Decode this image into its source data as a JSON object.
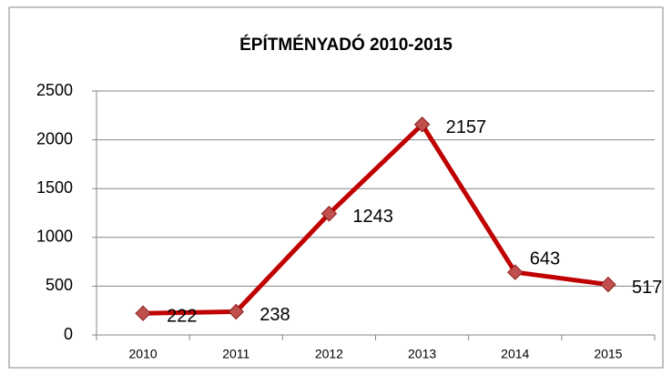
{
  "chart_data": {
    "type": "line",
    "title": "ÉPÍTMÉNYADÓ 2010-2015",
    "categories": [
      "2010",
      "2011",
      "2012",
      "2013",
      "2014",
      "2015"
    ],
    "values": [
      222,
      238,
      1243,
      2157,
      643,
      517
    ],
    "color": "#c00000",
    "marker_color": "#c0504d",
    "ylim": [
      0,
      2500
    ],
    "yticks": [
      0,
      500,
      1000,
      1500,
      2000,
      2500
    ],
    "grid": true
  }
}
